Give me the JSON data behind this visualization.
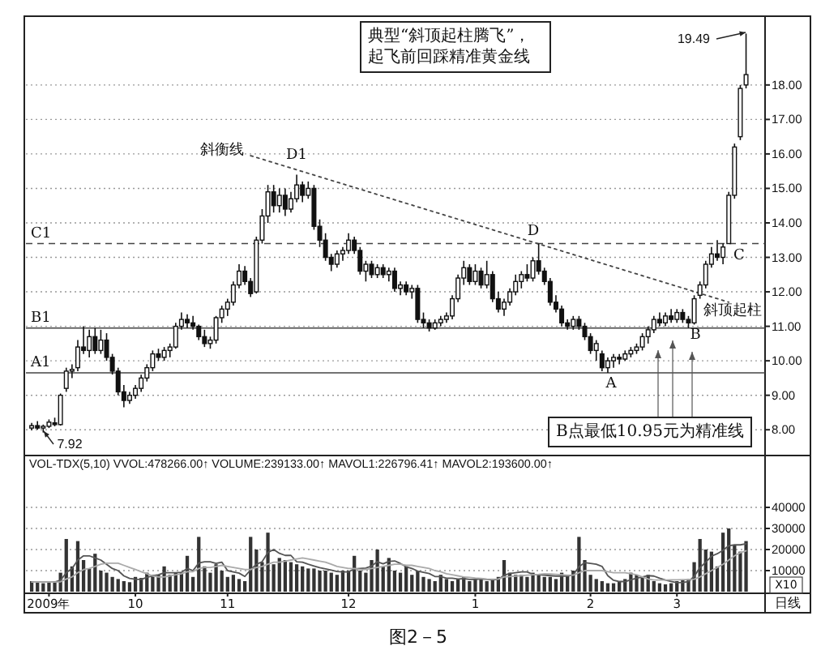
{
  "chart_data": [
    {
      "type": "candlestick",
      "color": "#111111",
      "ylim": [
        7.3,
        19.9
      ],
      "yticks": [
        {
          "value": 8,
          "label": "8.00"
        },
        {
          "value": 9,
          "label": "9.00"
        },
        {
          "value": 10,
          "label": "10.00"
        },
        {
          "value": 11,
          "label": "11.00"
        },
        {
          "value": 12,
          "label": "12.00"
        },
        {
          "value": 13,
          "label": "13.00"
        },
        {
          "value": 14,
          "label": "14.00"
        },
        {
          "value": 15,
          "label": "15.00"
        },
        {
          "value": 16,
          "label": "16.00"
        },
        {
          "value": 17,
          "label": "17.00"
        },
        {
          "value": 18,
          "label": "18.00"
        }
      ],
      "grid": "y",
      "tick_labels": "y",
      "categories": [
        null,
        null,
        null,
        null,
        null,
        null,
        null,
        null,
        null,
        null,
        null,
        null,
        null,
        null,
        null,
        null,
        null,
        null,
        null,
        null,
        null,
        null,
        null,
        null,
        null,
        null,
        null,
        null,
        null,
        null,
        null,
        null,
        null,
        null,
        null,
        null,
        null,
        null,
        null,
        null,
        null,
        null,
        null,
        null,
        null,
        null,
        null,
        null,
        null,
        null,
        null,
        null,
        null,
        null,
        null,
        null,
        null,
        null,
        null,
        null,
        null,
        null,
        null,
        null,
        null,
        null,
        null,
        null,
        null,
        null,
        null,
        null,
        null,
        null,
        null,
        null,
        null,
        null,
        null,
        null,
        null,
        null,
        null,
        null,
        null,
        null,
        null,
        null,
        null,
        null,
        null,
        null,
        null,
        null,
        null,
        null,
        null,
        null,
        null,
        null,
        null,
        null,
        null,
        null,
        null,
        null,
        null,
        null,
        null,
        null,
        null,
        null,
        null,
        null,
        null,
        null,
        null,
        null,
        null,
        null,
        null,
        null,
        null,
        null,
        null
      ],
      "ohlc": [
        [
          8.05,
          8.2,
          7.98,
          8.12
        ],
        [
          8.12,
          8.25,
          8.0,
          8.05
        ],
        [
          8.05,
          8.15,
          7.92,
          8.1
        ],
        [
          8.1,
          8.3,
          8.05,
          8.22
        ],
        [
          8.2,
          8.35,
          8.1,
          8.15
        ],
        [
          8.15,
          9.05,
          8.12,
          9.0
        ],
        [
          9.2,
          9.8,
          9.1,
          9.7
        ],
        [
          9.7,
          9.9,
          9.5,
          9.75
        ],
        [
          9.8,
          10.6,
          9.7,
          10.4
        ],
        [
          10.4,
          11.0,
          10.2,
          10.3
        ],
        [
          10.3,
          10.9,
          10.1,
          10.7
        ],
        [
          10.7,
          10.95,
          10.2,
          10.3
        ],
        [
          10.3,
          10.9,
          10.2,
          10.6
        ],
        [
          10.6,
          10.8,
          10.0,
          10.1
        ],
        [
          10.1,
          10.2,
          9.6,
          9.7
        ],
        [
          9.7,
          9.8,
          9.0,
          9.1
        ],
        [
          9.1,
          9.3,
          8.65,
          8.85
        ],
        [
          8.85,
          9.1,
          8.75,
          9.0
        ],
        [
          9.0,
          9.3,
          8.9,
          9.2
        ],
        [
          9.2,
          9.6,
          9.1,
          9.5
        ],
        [
          9.5,
          9.9,
          9.4,
          9.8
        ],
        [
          9.8,
          10.3,
          9.7,
          10.2
        ],
        [
          10.2,
          10.35,
          10.0,
          10.1
        ],
        [
          10.1,
          10.4,
          10.0,
          10.3
        ],
        [
          10.3,
          10.5,
          10.1,
          10.4
        ],
        [
          10.4,
          11.1,
          10.35,
          11.0
        ],
        [
          11.0,
          11.4,
          10.9,
          11.2
        ],
        [
          11.2,
          11.35,
          10.95,
          11.1
        ],
        [
          11.1,
          11.3,
          10.9,
          11.0
        ],
        [
          11.0,
          11.05,
          10.6,
          10.7
        ],
        [
          10.7,
          10.9,
          10.4,
          10.5
        ],
        [
          10.5,
          10.7,
          10.35,
          10.6
        ],
        [
          10.6,
          11.3,
          10.5,
          11.25
        ],
        [
          11.25,
          11.6,
          11.1,
          11.5
        ],
        [
          11.5,
          11.8,
          11.3,
          11.7
        ],
        [
          11.7,
          12.3,
          11.6,
          12.2
        ],
        [
          12.2,
          12.8,
          12.1,
          12.6
        ],
        [
          12.6,
          12.75,
          12.2,
          12.3
        ],
        [
          12.3,
          12.4,
          11.85,
          11.95
        ],
        [
          12.0,
          13.6,
          11.95,
          13.5
        ],
        [
          13.5,
          14.4,
          13.4,
          14.2
        ],
        [
          14.2,
          15.1,
          14.0,
          14.9
        ],
        [
          14.9,
          15.1,
          14.3,
          14.5
        ],
        [
          14.5,
          15.0,
          14.3,
          14.8
        ],
        [
          14.8,
          15.0,
          14.2,
          14.4
        ],
        [
          14.4,
          14.9,
          14.3,
          14.7
        ],
        [
          14.7,
          15.4,
          14.6,
          15.1
        ],
        [
          15.1,
          15.2,
          14.6,
          14.8
        ],
        [
          14.8,
          15.2,
          14.7,
          15.0
        ],
        [
          15.0,
          15.1,
          13.8,
          13.9
        ],
        [
          13.9,
          14.1,
          13.3,
          13.5
        ],
        [
          13.5,
          13.7,
          12.9,
          13.0
        ],
        [
          13.0,
          13.1,
          12.6,
          12.8
        ],
        [
          12.8,
          13.2,
          12.7,
          13.1
        ],
        [
          13.1,
          13.3,
          12.9,
          13.2
        ],
        [
          13.2,
          13.7,
          13.1,
          13.5
        ],
        [
          13.5,
          13.6,
          13.1,
          13.2
        ],
        [
          13.2,
          13.3,
          12.5,
          12.6
        ],
        [
          12.6,
          12.9,
          12.3,
          12.8
        ],
        [
          12.8,
          12.9,
          12.4,
          12.5
        ],
        [
          12.5,
          12.8,
          12.4,
          12.7
        ],
        [
          12.7,
          12.8,
          12.4,
          12.5
        ],
        [
          12.5,
          12.7,
          12.3,
          12.6
        ],
        [
          12.6,
          12.7,
          12.0,
          12.1
        ],
        [
          12.1,
          12.3,
          11.9,
          12.2
        ],
        [
          12.2,
          12.3,
          11.9,
          12.0
        ],
        [
          12.0,
          12.2,
          11.8,
          12.1
        ],
        [
          12.1,
          12.2,
          11.1,
          11.2
        ],
        [
          11.2,
          11.4,
          10.95,
          11.1
        ],
        [
          11.1,
          11.2,
          10.85,
          10.95
        ],
        [
          10.95,
          11.2,
          10.9,
          11.1
        ],
        [
          11.1,
          11.3,
          11.0,
          11.2
        ],
        [
          11.2,
          11.4,
          11.1,
          11.3
        ],
        [
          11.3,
          11.9,
          11.2,
          11.8
        ],
        [
          11.8,
          12.5,
          11.7,
          12.4
        ],
        [
          12.4,
          12.9,
          12.2,
          12.7
        ],
        [
          12.7,
          12.8,
          12.2,
          12.3
        ],
        [
          12.3,
          12.8,
          12.2,
          12.6
        ],
        [
          12.6,
          12.7,
          12.1,
          12.2
        ],
        [
          12.2,
          12.9,
          12.1,
          12.5
        ],
        [
          12.5,
          12.6,
          11.7,
          11.8
        ],
        [
          11.8,
          12.0,
          11.4,
          11.5
        ],
        [
          11.5,
          11.8,
          11.3,
          11.7
        ],
        [
          11.7,
          12.1,
          11.6,
          12.0
        ],
        [
          12.0,
          12.5,
          11.9,
          12.3
        ],
        [
          12.3,
          12.6,
          12.1,
          12.5
        ],
        [
          12.5,
          12.8,
          12.3,
          12.4
        ],
        [
          12.4,
          13.0,
          12.3,
          12.9
        ],
        [
          12.9,
          13.4,
          12.5,
          12.6
        ],
        [
          12.6,
          12.7,
          12.2,
          12.3
        ],
        [
          12.3,
          12.4,
          11.6,
          11.7
        ],
        [
          11.7,
          11.9,
          11.4,
          11.5
        ],
        [
          11.5,
          11.6,
          11.0,
          11.1
        ],
        [
          11.1,
          11.2,
          10.9,
          11.0
        ],
        [
          11.0,
          11.3,
          10.9,
          11.2
        ],
        [
          11.2,
          11.3,
          10.9,
          11.0
        ],
        [
          11.0,
          11.1,
          10.6,
          10.7
        ],
        [
          10.7,
          10.8,
          10.2,
          10.3
        ],
        [
          10.3,
          10.6,
          10.0,
          10.5
        ],
        [
          10.2,
          10.3,
          9.7,
          9.8
        ],
        [
          9.8,
          10.1,
          9.65,
          10.0
        ],
        [
          10.0,
          10.2,
          9.8,
          10.1
        ],
        [
          10.1,
          10.2,
          9.9,
          10.05
        ],
        [
          10.05,
          10.3,
          10.0,
          10.2
        ],
        [
          10.2,
          10.4,
          10.1,
          10.3
        ],
        [
          10.3,
          10.5,
          10.2,
          10.4
        ],
        [
          10.4,
          10.8,
          10.3,
          10.7
        ],
        [
          10.7,
          11.0,
          10.5,
          10.9
        ],
        [
          10.9,
          11.3,
          10.8,
          11.2
        ],
        [
          11.2,
          11.4,
          11.0,
          11.1
        ],
        [
          11.1,
          11.4,
          11.0,
          11.3
        ],
        [
          11.3,
          11.5,
          11.1,
          11.2
        ],
        [
          11.2,
          11.5,
          11.1,
          11.4
        ],
        [
          11.4,
          11.5,
          11.1,
          11.2
        ],
        [
          11.2,
          11.3,
          10.95,
          11.1
        ],
        [
          11.1,
          11.9,
          11.05,
          11.8
        ],
        [
          11.9,
          12.3,
          11.8,
          12.2
        ],
        [
          12.2,
          12.9,
          12.1,
          12.8
        ],
        [
          12.8,
          13.3,
          12.7,
          13.1
        ],
        [
          13.1,
          13.5,
          12.9,
          13.0
        ],
        [
          13.0,
          13.4,
          12.8,
          13.3
        ],
        [
          13.4,
          14.9,
          13.4,
          14.8
        ],
        [
          14.8,
          16.3,
          14.7,
          16.2
        ],
        [
          16.5,
          18.0,
          16.4,
          17.9
        ],
        [
          18.0,
          19.49,
          17.9,
          18.3
        ]
      ],
      "series": [
        {
          "type": "line",
          "color": "#444444",
          "line_style": "dotted",
          "values": [
            null,
            null,
            null,
            null,
            null,
            null,
            null,
            null,
            null,
            null,
            null,
            null,
            null,
            null,
            null,
            null,
            null,
            null,
            null,
            null,
            null,
            null,
            null,
            null,
            null,
            null,
            null,
            null,
            null,
            null,
            null,
            null,
            null,
            null,
            null,
            null,
            null,
            null,
            15.95,
            null,
            null,
            null,
            null,
            null,
            null,
            null,
            null,
            null,
            null,
            null,
            null,
            null,
            null,
            null,
            null,
            null,
            null,
            null,
            null,
            null,
            null,
            null,
            null,
            null,
            null,
            null,
            null,
            null,
            null,
            null,
            null,
            null,
            null,
            null,
            null,
            null,
            null,
            null,
            null,
            null,
            null,
            null,
            null,
            null,
            null,
            null,
            null,
            null,
            null,
            null,
            null,
            null,
            null,
            null,
            null,
            null,
            null,
            null,
            null,
            null,
            null,
            null,
            null,
            null,
            null,
            null,
            null,
            null,
            null,
            null,
            null,
            null,
            null,
            null,
            null,
            null,
            null,
            null,
            null,
            null,
            null,
            11.7,
            null,
            null,
            null
          ]
        }
      ],
      "ref_lines": [
        {
          "axis": "y",
          "value": 13.4,
          "label": "C1",
          "line_style": "dashed",
          "color": "#444444"
        },
        {
          "axis": "y",
          "value": 10.95,
          "label": "B1",
          "line_style": "solid",
          "color": "#444444"
        },
        {
          "axis": "y",
          "value": 9.65,
          "label": "A1",
          "line_style": "solid",
          "color": "#444444"
        }
      ],
      "annotations": [
        "典型“斜顶起柱腾飞”，起飞前回踩精准黄金线",
        "B点最低10.95元为精准线",
        "斜衡线",
        "D1",
        "D",
        "C",
        "B",
        "A",
        "斜顶起柱",
        "7.92",
        "19.49"
      ]
    },
    {
      "type": "bar",
      "title": "VOL-TDX(5,10) VVOL:478266.00↑ VOLUME:239133.00↑ MAVOL1:226796.41↑ MAVOL2:193600.00↑",
      "ylim": [
        0,
        64600
      ],
      "yticks": [
        10000,
        20000,
        30000,
        40000
      ],
      "grid": "y",
      "categories": [
        null,
        null,
        null,
        "2009年",
        null,
        null,
        null,
        null,
        null,
        null,
        null,
        null,
        null,
        null,
        null,
        null,
        null,
        null,
        "10",
        null,
        null,
        null,
        null,
        null,
        null,
        null,
        null,
        null,
        null,
        null,
        null,
        null,
        null,
        null,
        "11",
        null,
        null,
        null,
        null,
        null,
        null,
        null,
        null,
        null,
        null,
        null,
        null,
        null,
        null,
        null,
        null,
        null,
        null,
        null,
        null,
        "12",
        null,
        null,
        null,
        null,
        null,
        null,
        null,
        null,
        null,
        null,
        null,
        null,
        null,
        null,
        null,
        null,
        null,
        null,
        null,
        null,
        null,
        "1",
        null,
        null,
        null,
        null,
        null,
        null,
        null,
        null,
        null,
        null,
        null,
        null,
        null,
        null,
        null,
        null,
        null,
        null,
        null,
        "2",
        null,
        null,
        null,
        null,
        null,
        null,
        null,
        null,
        null,
        null,
        null,
        null,
        null,
        null,
        "3",
        null,
        null,
        null,
        null,
        null,
        null,
        null,
        null,
        null,
        null,
        null,
        null
      ],
      "series": [
        {
          "type": "bar",
          "color": "#333333",
          "values": [
            5000,
            4500,
            4000,
            4500,
            5000,
            9000,
            25000,
            12000,
            24000,
            15000,
            11000,
            18000,
            10000,
            9000,
            7000,
            6000,
            5000,
            4500,
            7000,
            6500,
            9000,
            8000,
            8000,
            12000,
            8000,
            9000,
            9000,
            17000,
            7000,
            26000,
            12000,
            9000,
            13000,
            10000,
            7000,
            8000,
            6000,
            5000,
            26000,
            20000,
            14000,
            28000,
            13000,
            16000,
            15000,
            14000,
            13000,
            12000,
            11000,
            11000,
            10000,
            10000,
            9000,
            8000,
            10000,
            10000,
            17000,
            10000,
            9000,
            15000,
            20000,
            12000,
            16000,
            10000,
            9000,
            12000,
            8000,
            10000,
            7000,
            6000,
            5000,
            8000,
            6000,
            5000,
            6000,
            7000,
            5000,
            6000,
            6000,
            5000,
            6000,
            7000,
            15000,
            9000,
            8000,
            8000,
            7000,
            9000,
            8000,
            7000,
            7000,
            6000,
            9000,
            8000,
            10000,
            26000,
            15000,
            8000,
            6000,
            5000,
            4000,
            4000,
            5000,
            6000,
            9000,
            8000,
            7000,
            8000,
            5000,
            4000,
            3500,
            4000,
            5000,
            5500,
            6000,
            14000,
            25000,
            20000,
            19000,
            12000,
            28000,
            30000,
            22000,
            19000,
            24000
          ]
        },
        {
          "type": "line",
          "color": "#555555",
          "values": [
            4600,
            4600,
            4600,
            4600,
            4600,
            5400,
            9000,
            11000,
            15000,
            17000,
            17000,
            16000,
            15000,
            13000,
            11000,
            10000,
            7500,
            6300,
            5900,
            5800,
            6800,
            7500,
            8000,
            9000,
            9000,
            9000,
            9200,
            11000,
            10000,
            13600,
            14200,
            14200,
            13400,
            14000,
            10000,
            9400,
            8800,
            7200,
            10400,
            13000,
            14200,
            18600,
            20000,
            18200,
            17200,
            17200,
            14200,
            14000,
            13000,
            12200,
            11400,
            10800,
            10200,
            9600,
            9400,
            9400,
            10800,
            11000,
            11200,
            12200,
            14200,
            13200,
            14400,
            14600,
            13400,
            11800,
            11000,
            9800,
            9200,
            8600,
            7200,
            7200,
            6400,
            6400,
            6000,
            6200,
            5800,
            5800,
            6000,
            5800,
            5600,
            5800,
            7800,
            8600,
            9000,
            9400,
            9400,
            8200,
            8000,
            7800,
            7600,
            7400,
            7400,
            7400,
            8000,
            11800,
            13800,
            13400,
            13000,
            12000,
            7600,
            5400,
            4800,
            4800,
            5600,
            6400,
            7000,
            7600,
            7400,
            6400,
            5500,
            4900,
            4300,
            4400,
            4800,
            7200,
            11400,
            14000,
            16800,
            18000,
            19600,
            21800,
            22200,
            22200,
            22700
          ]
        },
        {
          "type": "line",
          "color": "#aaaaaa",
          "values": [
            4600,
            4600,
            4600,
            4600,
            4600,
            4700,
            6000,
            7000,
            9000,
            10500,
            11000,
            12000,
            13000,
            13500,
            13500,
            13500,
            12500,
            11500,
            10500,
            9500,
            8500,
            7500,
            7000,
            7000,
            7500,
            8000,
            8500,
            9500,
            9500,
            11000,
            11500,
            11500,
            12000,
            12500,
            12000,
            11500,
            11000,
            10500,
            10500,
            11500,
            12000,
            13000,
            14000,
            14000,
            14500,
            15000,
            15500,
            16000,
            15500,
            15000,
            14500,
            14000,
            13000,
            12000,
            11500,
            11000,
            11000,
            10500,
            10500,
            11000,
            11500,
            12000,
            12500,
            13000,
            13000,
            12500,
            12500,
            12000,
            11500,
            11000,
            10000,
            9500,
            8500,
            8000,
            7500,
            7000,
            6800,
            6500,
            6300,
            6000,
            5900,
            6000,
            7000,
            7200,
            7400,
            7600,
            7800,
            8000,
            8200,
            8500,
            8400,
            8200,
            8000,
            7800,
            7800,
            9000,
            10000,
            10000,
            10000,
            10000,
            9500,
            9000,
            9000,
            9000,
            8500,
            8000,
            7000,
            6000,
            5500,
            5500,
            5500,
            5600,
            5600,
            5700,
            5700,
            5900,
            7000,
            8500,
            10000,
            11500,
            13000,
            15000,
            17000,
            18500,
            19400
          ]
        }
      ],
      "annotations": [
        "X10",
        "日线",
        "图2－5"
      ]
    }
  ]
}
